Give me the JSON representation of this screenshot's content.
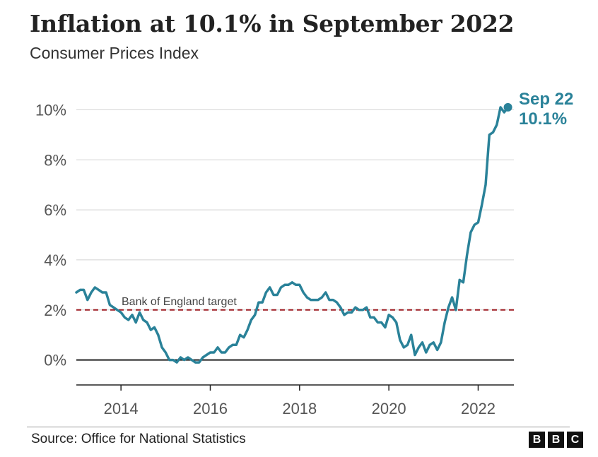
{
  "header": {
    "title": "Inflation at 10.1% in September 2022",
    "subtitle": "Consumer Prices Index"
  },
  "footer": {
    "source": "Source: Office for National Statistics",
    "logo_letters": [
      "B",
      "B",
      "C"
    ]
  },
  "chart_data": {
    "type": "line",
    "title": "Inflation at 10.1% in September 2022",
    "subtitle": "Consumer Prices Index",
    "xlabel": "",
    "ylabel": "",
    "xlim": [
      2013.0,
      2022.8
    ],
    "ylim": [
      -1.0,
      11.0
    ],
    "x_ticks": [
      2014,
      2016,
      2018,
      2020,
      2022
    ],
    "x_tick_labels": [
      "2014",
      "2016",
      "2018",
      "2020",
      "2022"
    ],
    "y_ticks": [
      0,
      2,
      4,
      6,
      8,
      10
    ],
    "y_tick_labels": [
      "0%",
      "2%",
      "4%",
      "6%",
      "8%",
      "10%"
    ],
    "grid": "horizontal",
    "line_color": "#2a8299",
    "target_line": {
      "label": "Bank of England target",
      "value": 2.0,
      "color": "#9e1b22"
    },
    "annotation": {
      "label": "Sep 22",
      "value_label": "10.1%",
      "x": "2022-09",
      "y": 10.1
    },
    "series": [
      {
        "name": "",
        "start": "2013-01",
        "frequency": "monthly",
        "values": [
          2.7,
          2.8,
          2.8,
          2.4,
          2.7,
          2.9,
          2.8,
          2.7,
          2.7,
          2.2,
          2.1,
          2.0,
          1.9,
          1.7,
          1.6,
          1.8,
          1.5,
          1.9,
          1.6,
          1.5,
          1.2,
          1.3,
          1.0,
          0.5,
          0.3,
          0.0,
          0.0,
          -0.1,
          0.1,
          0.0,
          0.1,
          0.0,
          -0.1,
          -0.1,
          0.1,
          0.2,
          0.3,
          0.3,
          0.5,
          0.3,
          0.3,
          0.5,
          0.6,
          0.6,
          1.0,
          0.9,
          1.2,
          1.6,
          1.8,
          2.3,
          2.3,
          2.7,
          2.9,
          2.6,
          2.6,
          2.9,
          3.0,
          3.0,
          3.1,
          3.0,
          3.0,
          2.7,
          2.5,
          2.4,
          2.4,
          2.4,
          2.5,
          2.7,
          2.4,
          2.4,
          2.3,
          2.1,
          1.8,
          1.9,
          1.9,
          2.1,
          2.0,
          2.0,
          2.1,
          1.7,
          1.7,
          1.5,
          1.5,
          1.3,
          1.8,
          1.7,
          1.5,
          0.8,
          0.5,
          0.6,
          1.0,
          0.2,
          0.5,
          0.7,
          0.3,
          0.6,
          0.7,
          0.4,
          0.7,
          1.5,
          2.1,
          2.5,
          2.0,
          3.2,
          3.1,
          4.2,
          5.1,
          5.4,
          5.5,
          6.2,
          7.0,
          9.0,
          9.1,
          9.4,
          10.1,
          9.9,
          10.1
        ]
      }
    ]
  }
}
